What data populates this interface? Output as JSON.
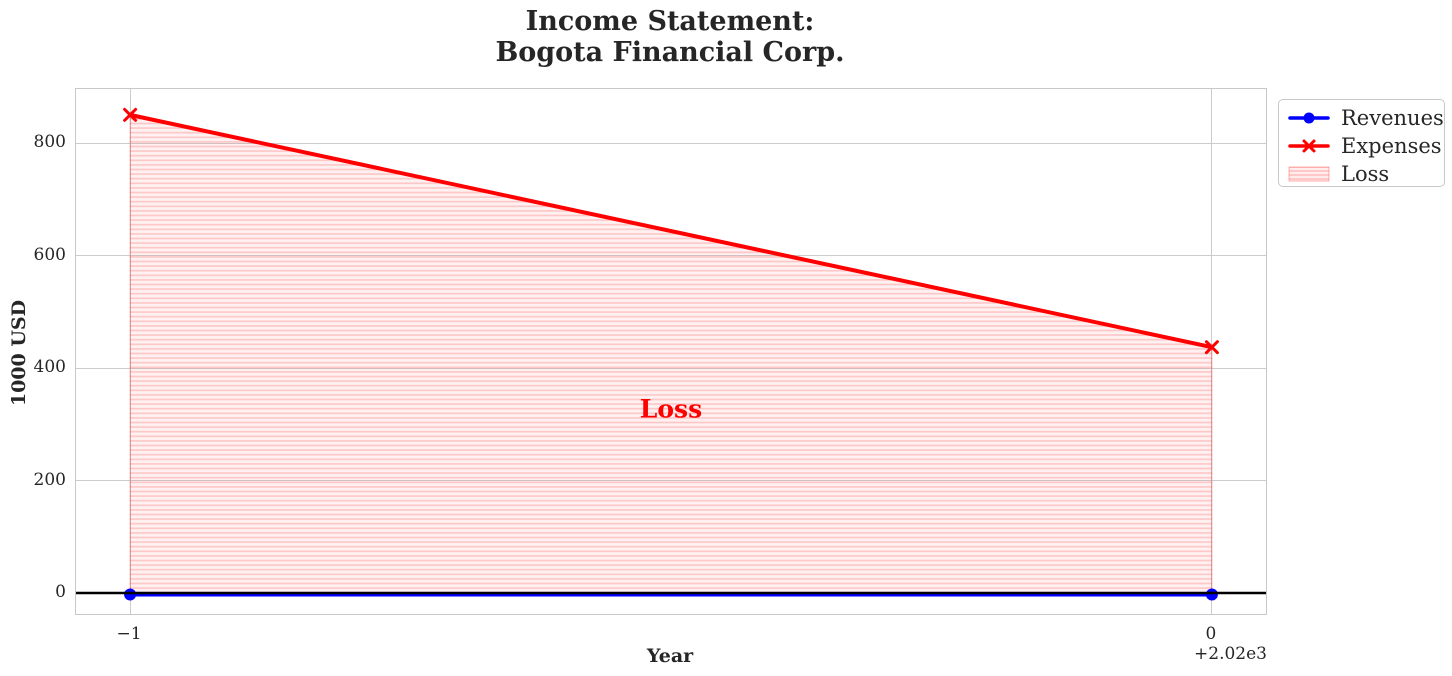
{
  "chart": {
    "colors": {
      "revenues": "#0000ff",
      "expenses": "#ff0000",
      "loss_fill": "#ff0000",
      "baseline": "#000000",
      "grid": "#cccccc",
      "text": "#262626",
      "annotation": "#ff0000"
    }
  },
  "chart_data": {
    "type": "line",
    "title": "Income Statement:\nBogota Financial Corp.",
    "title_lines": [
      "Income Statement:",
      "Bogota Financial Corp."
    ],
    "xlabel": "Year",
    "ylabel": "1000 USD",
    "x_plot": [
      -1,
      0
    ],
    "x_tick_labels": [
      "−1",
      "0"
    ],
    "x_offset_text": "+2.02e3",
    "x_actual_years": [
      2019,
      2020
    ],
    "xlim": [
      -1.05,
      0.05
    ],
    "ylim": [
      -37.3,
      896
    ],
    "yticks": [
      0,
      200,
      400,
      600,
      800
    ],
    "ytick_labels": [
      "0",
      "200",
      "400",
      "600",
      "800"
    ],
    "grid": true,
    "series": [
      {
        "name": "Revenues",
        "color": "#0000ff",
        "marker": "circle",
        "values": [
          0,
          0
        ]
      },
      {
        "name": "Expenses",
        "color": "#ff0000",
        "marker": "x",
        "values": [
          850,
          437
        ]
      }
    ],
    "fill_between": {
      "label": "Loss",
      "between": [
        "Revenues",
        "Expenses"
      ],
      "fill_color": "#ff0000",
      "fill_alpha": 0.06,
      "hatch": "horizontal-lines"
    },
    "baseline": {
      "value": 0,
      "color": "#000000"
    },
    "annotation": {
      "text": "Loss",
      "x": -0.5,
      "y": 327,
      "color": "#ff0000"
    },
    "legend": [
      "Revenues",
      "Expenses",
      "Loss"
    ],
    "legend_position": "upper-right-outside"
  }
}
